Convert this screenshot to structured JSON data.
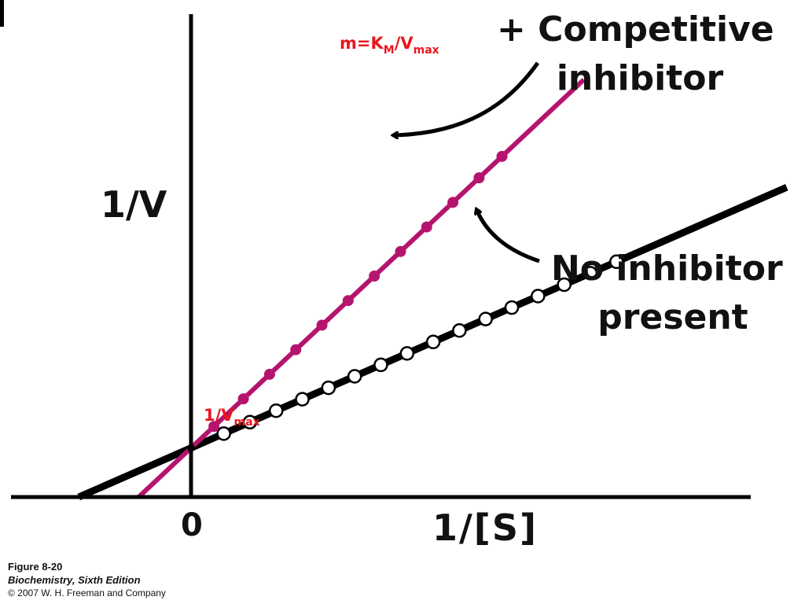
{
  "chart_data": {
    "type": "line",
    "xlabel": "1/[S]",
    "ylabel": "1/V",
    "x_tick_labels": [
      "0"
    ],
    "xlim": [
      -0.55,
      2.3
    ],
    "ylim": [
      0,
      1.18
    ],
    "grid": false,
    "series": [
      {
        "name": "No inhibitor present",
        "color": "#000000",
        "marker": "open-circle",
        "intercept": 0.12,
        "slope": 0.35,
        "points_x": [
          0.1,
          0.18,
          0.26,
          0.34,
          0.42,
          0.5,
          0.58,
          0.66,
          0.74,
          0.82,
          0.9,
          0.98,
          1.06,
          1.14,
          1.22,
          1.3
        ]
      },
      {
        "name": "+ Competitive inhibitor",
        "color": "#b5146e",
        "marker": "filled-circle",
        "intercept": 0.12,
        "slope": 0.75,
        "points_x": [
          0.07,
          0.16,
          0.24,
          0.32,
          0.4,
          0.48,
          0.56,
          0.64,
          0.72,
          0.8,
          0.88,
          0.95
        ]
      }
    ],
    "annotations": {
      "slope_parts": [
        "m=K",
        "M",
        "/V",
        "max"
      ],
      "intercept_parts": [
        "1/V",
        "max"
      ],
      "competitive_lines": [
        "+ Competitive",
        "inhibitor"
      ],
      "no_inhibitor_lines": [
        "No inhibitor",
        "present"
      ]
    },
    "colors": {
      "annotation_red": "#e8171d",
      "inhibited_line": "#b5146e",
      "uninhibited_line": "#000000"
    }
  },
  "caption": {
    "figure": "Figure 8-20",
    "book": "Biochemistry, Sixth Edition",
    "copyright": "© 2007 W. H. Freeman and Company"
  }
}
